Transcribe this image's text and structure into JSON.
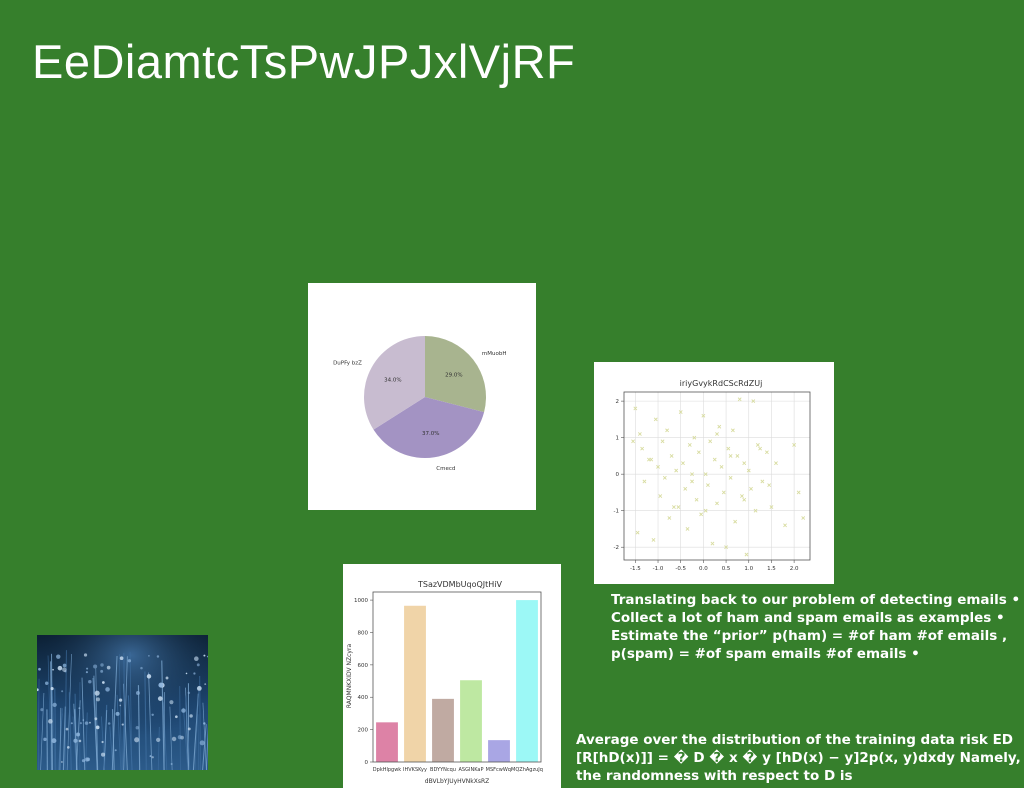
{
  "slide": {
    "title": "EeDiamtcTsPwJPJxlVjRF",
    "background": "#367f2c",
    "text_block_1": "Translating back to our problem of detecting emails • Collect a lot of ham and spam emails as examples • Estimate the “prior” p(ham) = #of ham #of emails , p(spam) = #of spam emails #of emails •",
    "text_block_2": "Average over the distribution of the training data risk ED [R[hD(x)]] = � D � x � y [hD(x) − y]2p(x, y)dxdy Namely, the randomness with respect to D is",
    "photo_icon": "lavender-field-photo"
  },
  "chart_data": [
    {
      "type": "pie",
      "title": "",
      "labels": [
        "mMuobH",
        "Cmecd",
        "DuPFy bzZ"
      ],
      "values": [
        29.0,
        37.0,
        34.0
      ],
      "pct_labels": [
        "29.0%",
        "37.0%",
        "34.0%"
      ],
      "colors": [
        "#a8b48f",
        "#a393c3",
        "#c8bcd0"
      ]
    },
    {
      "type": "scatter",
      "title": "iriyGvykRdCScRdZUj",
      "xlim": [
        -1.75,
        2.35
      ],
      "ylim": [
        -2.35,
        2.25
      ],
      "xticks": [
        "-1.5",
        "-1.0",
        "-0.5",
        "0.0",
        "0.5",
        "1.0",
        "1.5",
        "2.0"
      ],
      "xtick_values": [
        -1.5,
        -1.0,
        -0.5,
        0.0,
        0.5,
        1.0,
        1.5,
        2.0
      ],
      "yticks": [
        "2",
        "1",
        "0",
        "-1",
        "-2"
      ],
      "ytick_values": [
        2,
        1,
        0,
        -1,
        -2
      ],
      "grid": true,
      "marker": "x",
      "color": "#d8dca0",
      "x": [
        -1.5,
        -1.45,
        -1.4,
        -1.35,
        -1.3,
        -1.2,
        -1.1,
        -1.05,
        -1.0,
        -0.95,
        -0.9,
        -0.85,
        -0.8,
        -0.75,
        -0.7,
        -0.6,
        -0.55,
        -0.5,
        -0.45,
        -0.4,
        -0.35,
        -0.3,
        -0.25,
        -0.2,
        -0.15,
        -0.1,
        -0.05,
        0.0,
        0.05,
        0.1,
        0.15,
        0.2,
        0.25,
        0.3,
        0.35,
        0.4,
        0.45,
        0.5,
        0.55,
        0.6,
        0.65,
        0.7,
        0.75,
        0.8,
        0.85,
        0.9,
        0.95,
        1.0,
        1.05,
        1.1,
        1.15,
        1.2,
        1.3,
        1.4,
        1.5,
        1.6,
        1.8,
        2.0,
        2.1,
        2.2,
        -1.55,
        -0.65,
        0.3,
        0.9,
        1.25,
        -0.25,
        0.6,
        1.45,
        -1.15,
        0.05
      ],
      "y": [
        1.8,
        -1.6,
        1.1,
        0.7,
        -0.2,
        0.4,
        -1.8,
        1.5,
        0.2,
        -0.6,
        0.9,
        -0.1,
        1.2,
        -1.2,
        0.5,
        0.1,
        -0.9,
        1.7,
        0.3,
        -0.4,
        -1.5,
        0.8,
        -0.2,
        1.0,
        -0.7,
        0.6,
        -1.1,
        1.6,
        0.0,
        -0.3,
        0.9,
        -1.9,
        0.4,
        -0.8,
        1.3,
        0.2,
        -0.5,
        -2.0,
        0.7,
        -0.1,
        1.2,
        -1.3,
        0.5,
        2.05,
        -0.6,
        0.3,
        -2.2,
        0.1,
        -0.4,
        2.0,
        -1.0,
        0.8,
        -0.2,
        0.6,
        -0.9,
        0.3,
        -1.4,
        0.8,
        -0.5,
        -1.2,
        0.9,
        -0.9,
        1.1,
        -0.7,
        0.7,
        0.0,
        0.5,
        -0.3,
        0.4,
        -1.0
      ]
    },
    {
      "type": "bar",
      "title": "TSazVDMbUqoQJtHiV",
      "ylabel": "RAQMNKXIDV NZcyra",
      "xlabel": "dBVLbYJUyHVNkXsRZ",
      "categories": [
        "DpkHlpgwk",
        "IHVKSKyy",
        "BDYYNcqu",
        "ASGINKaP",
        "MSFcwWqi",
        "MQZhAgzuJq"
      ],
      "values": [
        245,
        965,
        390,
        505,
        135,
        1000
      ],
      "colors": [
        "#dd82a6",
        "#f0d4a8",
        "#c0aaa2",
        "#bee8a2",
        "#a9a6e4",
        "#9cf8f6"
      ],
      "ylim": [
        0,
        1050
      ],
      "yticks": [
        "0",
        "200",
        "400",
        "600",
        "800",
        "1000"
      ],
      "ytick_values": [
        0,
        200,
        400,
        600,
        800,
        1000
      ]
    }
  ]
}
